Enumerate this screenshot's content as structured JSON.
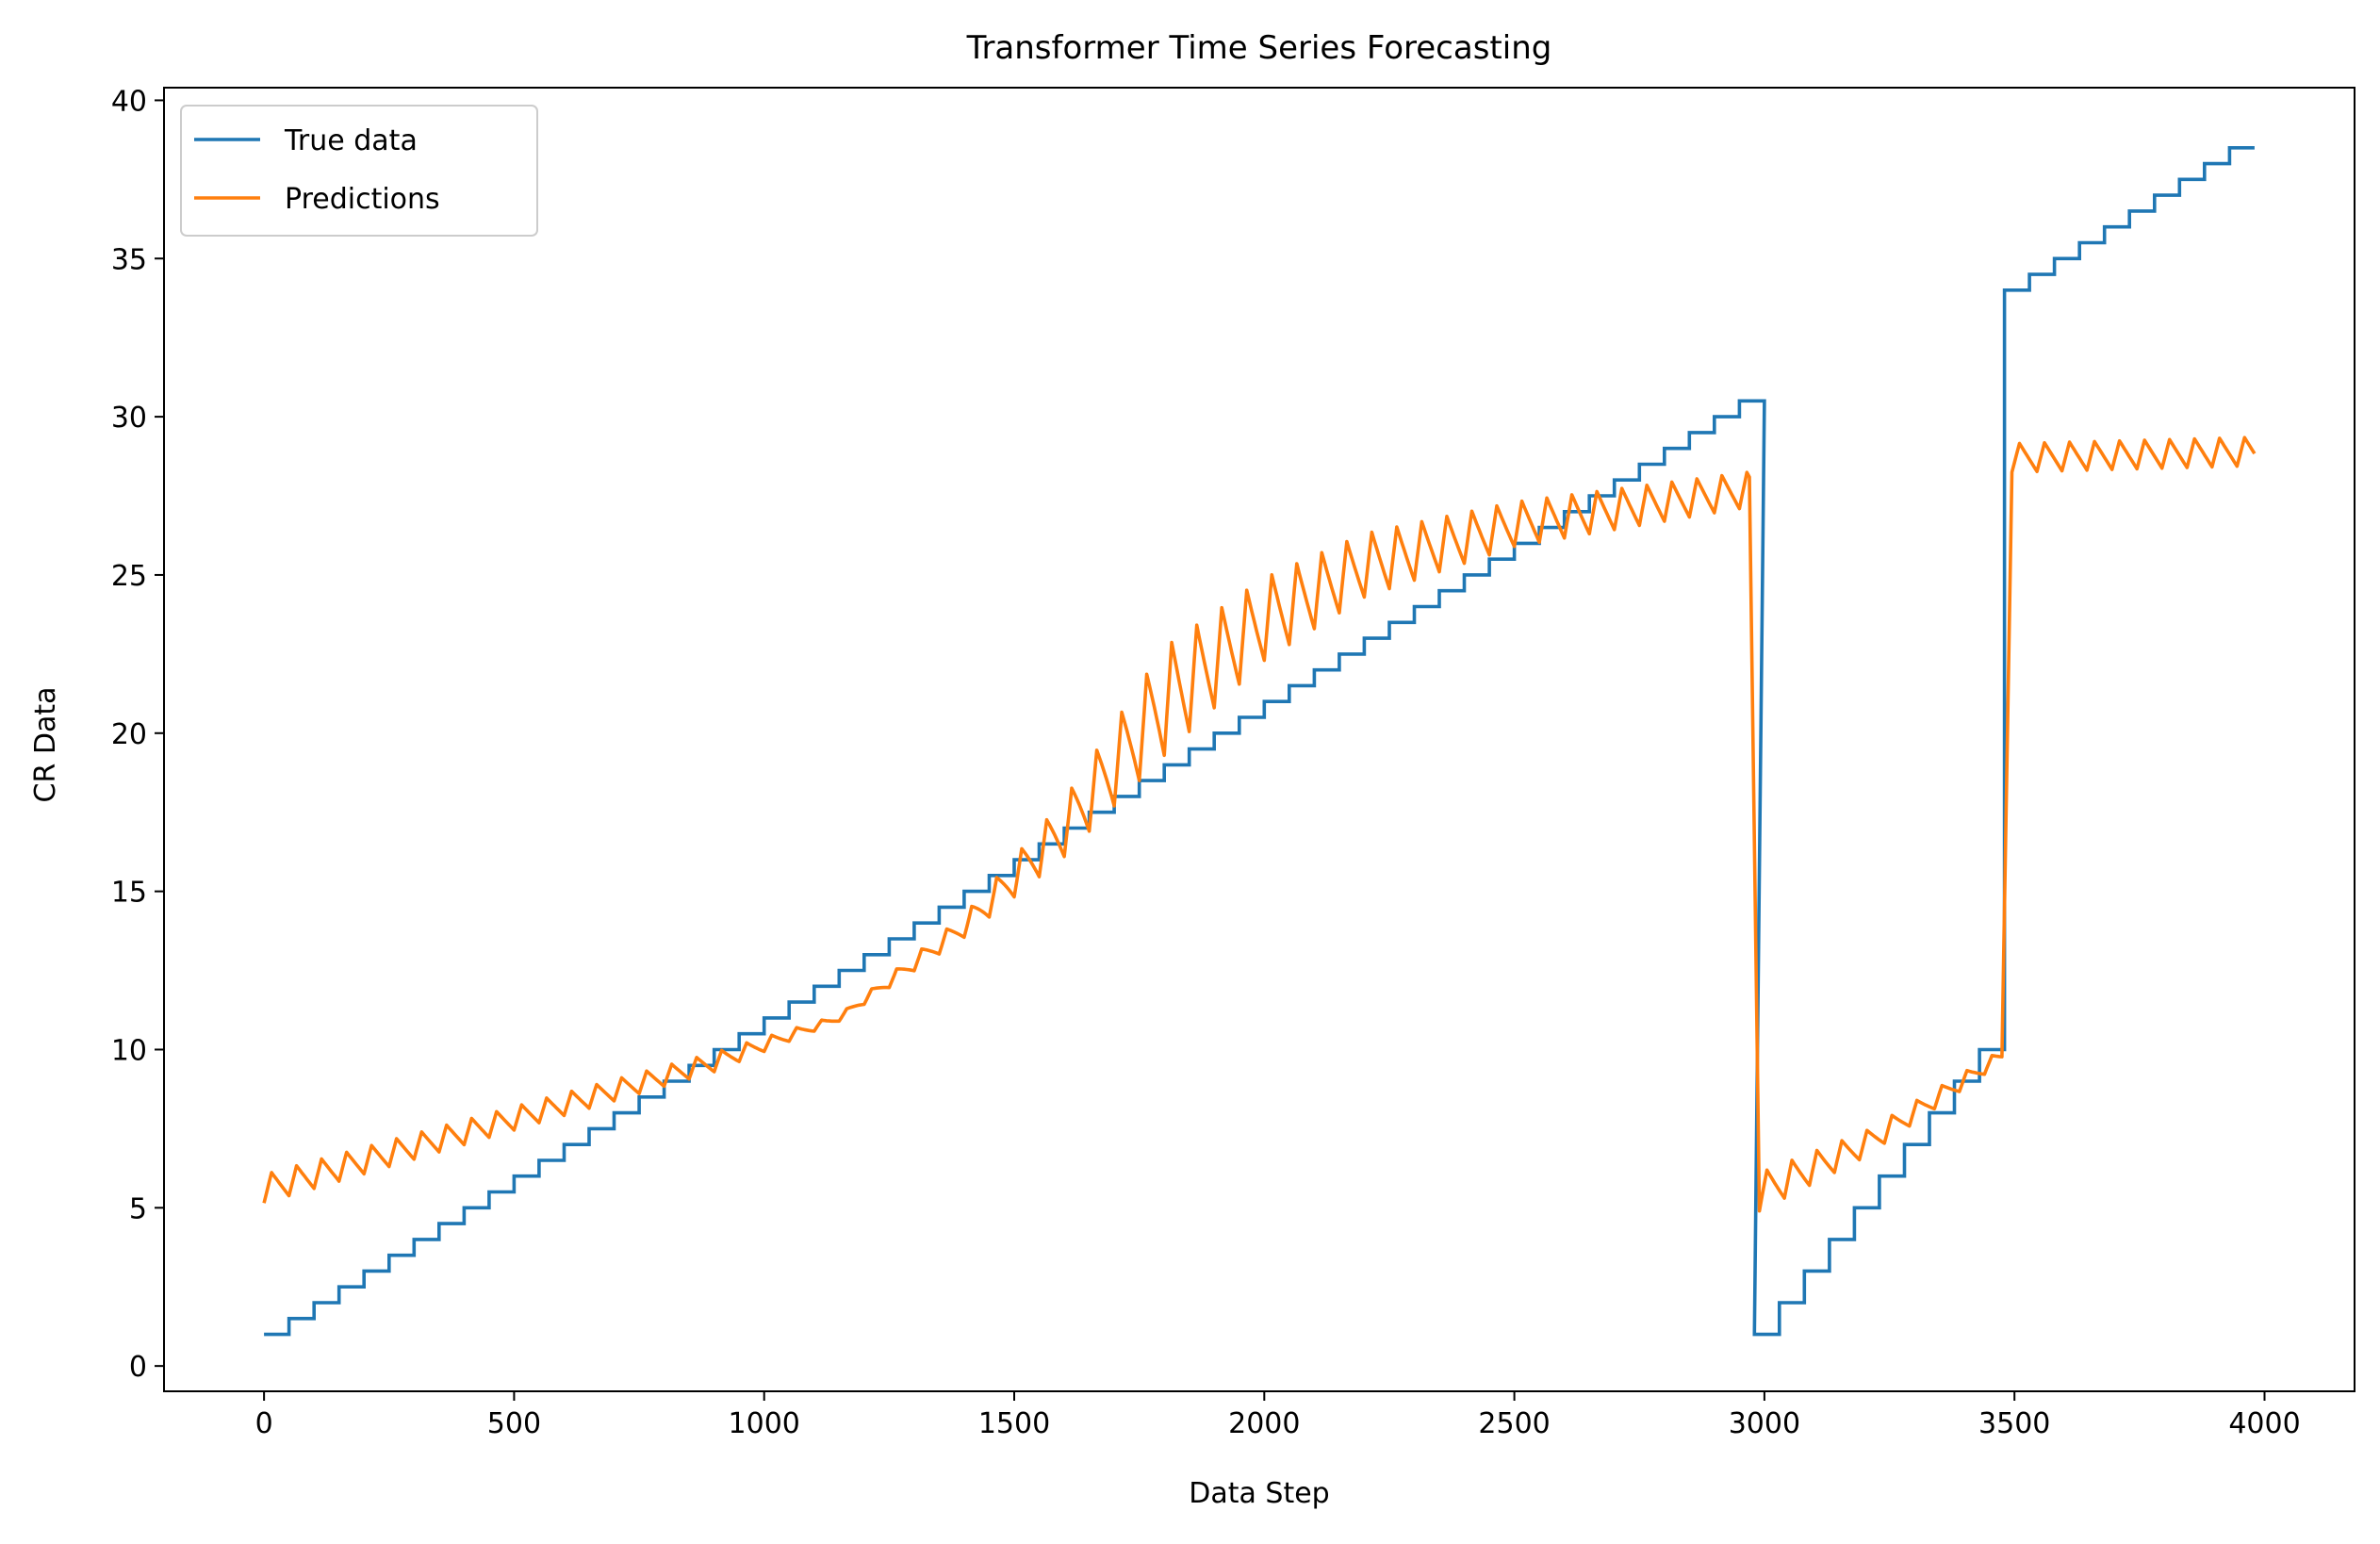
{
  "chart_data": {
    "type": "line",
    "title": "Transformer Time Series Forecasting",
    "xlabel": "Data Step",
    "ylabel": "CR Data",
    "xlim": [
      -200,
      4180
    ],
    "ylim": [
      -0.8,
      40.4
    ],
    "xticks": [
      0,
      500,
      1000,
      1500,
      2000,
      2500,
      3000,
      3500,
      4000
    ],
    "yticks": [
      0,
      5,
      10,
      15,
      20,
      25,
      30,
      35,
      40
    ],
    "grid": false,
    "legend_position": "top-left",
    "series": [
      {
        "name": "True data",
        "color": "#1f77b4",
        "step": {
          "segments": [
            {
              "x_start": 0,
              "x_end": 2980,
              "y_start": 1.0,
              "y_step": 0.5,
              "interval": 50
            },
            {
              "x_start": 2980,
              "x_end": 3480,
              "y_start": 1.0,
              "y_step": 1.0,
              "interval": 50
            },
            {
              "x_start": 3480,
              "x_end": 3980,
              "y_start": 34.0,
              "y_step": 0.5,
              "interval": 50
            }
          ]
        }
      },
      {
        "name": "Predictions",
        "color": "#ff7f0e",
        "sawtooth": {
          "period": 50,
          "segments": [
            {
              "x_start": 0,
              "x_end": 2970,
              "knots": [
                [
                  0,
                  5.6,
                  0.45
                ],
                [
                  900,
                  9.6,
                  0.3
                ],
                [
                  1150,
                  11.0,
                  0.1
                ],
                [
                  1400,
                  13.9,
                  0.35
                ],
                [
                  1600,
                  17.0,
                  0.9
                ],
                [
                  1800,
                  21.0,
                  1.7
                ],
                [
                  2000,
                  23.6,
                  1.3
                ],
                [
                  2200,
                  25.3,
                  1.0
                ],
                [
                  2500,
                  26.6,
                  0.7
                ],
                [
                  2970,
                  27.7,
                  0.55
                ]
              ]
            },
            {
              "x_start": 2990,
              "x_end": 3475,
              "knots": [
                [
                  2990,
                  5.5,
                  0.6
                ],
                [
                  3200,
                  7.0,
                  0.4
                ],
                [
                  3475,
                  9.8,
                  0.2
                ]
              ]
            },
            {
              "x_start": 3495,
              "x_end": 3980,
              "knots": [
                [
                  3495,
                  28.7,
                  0.45
                ],
                [
                  3980,
                  28.9,
                  0.45
                ]
              ]
            }
          ]
        }
      }
    ]
  }
}
